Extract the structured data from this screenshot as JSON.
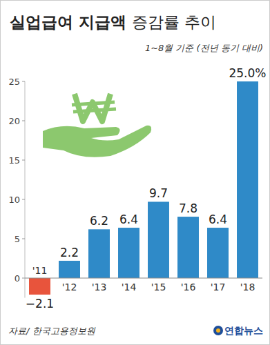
{
  "chart_data": {
    "type": "bar",
    "title": "실업급여 지급액 증감률 추이",
    "subtitle": "1~8월 기준 (전년 동기 대비)",
    "source": "자료/ 한국고용정보원",
    "credit": "연합뉴스",
    "categories": [
      "'11",
      "'12",
      "'13",
      "'14",
      "'15",
      "'16",
      "'17",
      "'18"
    ],
    "values": [
      -2.1,
      2.2,
      6.2,
      6.4,
      9.7,
      7.8,
      6.4,
      25.0
    ],
    "value_labels": [
      "−2.1",
      "2.2",
      "6.2",
      "6.4",
      "9.7",
      "7.8",
      "6.4",
      "25.0%"
    ],
    "colors": [
      "#e8543c",
      "#2f8ac8",
      "#2f8ac8",
      "#2f8ac8",
      "#2f8ac8",
      "#2f8ac8",
      "#2f8ac8",
      "#2f8ac8"
    ],
    "ylim": [
      -2.5,
      25
    ],
    "yticks": [
      0,
      5,
      10,
      15,
      20,
      25
    ],
    "grid": false,
    "data_labels": true
  }
}
